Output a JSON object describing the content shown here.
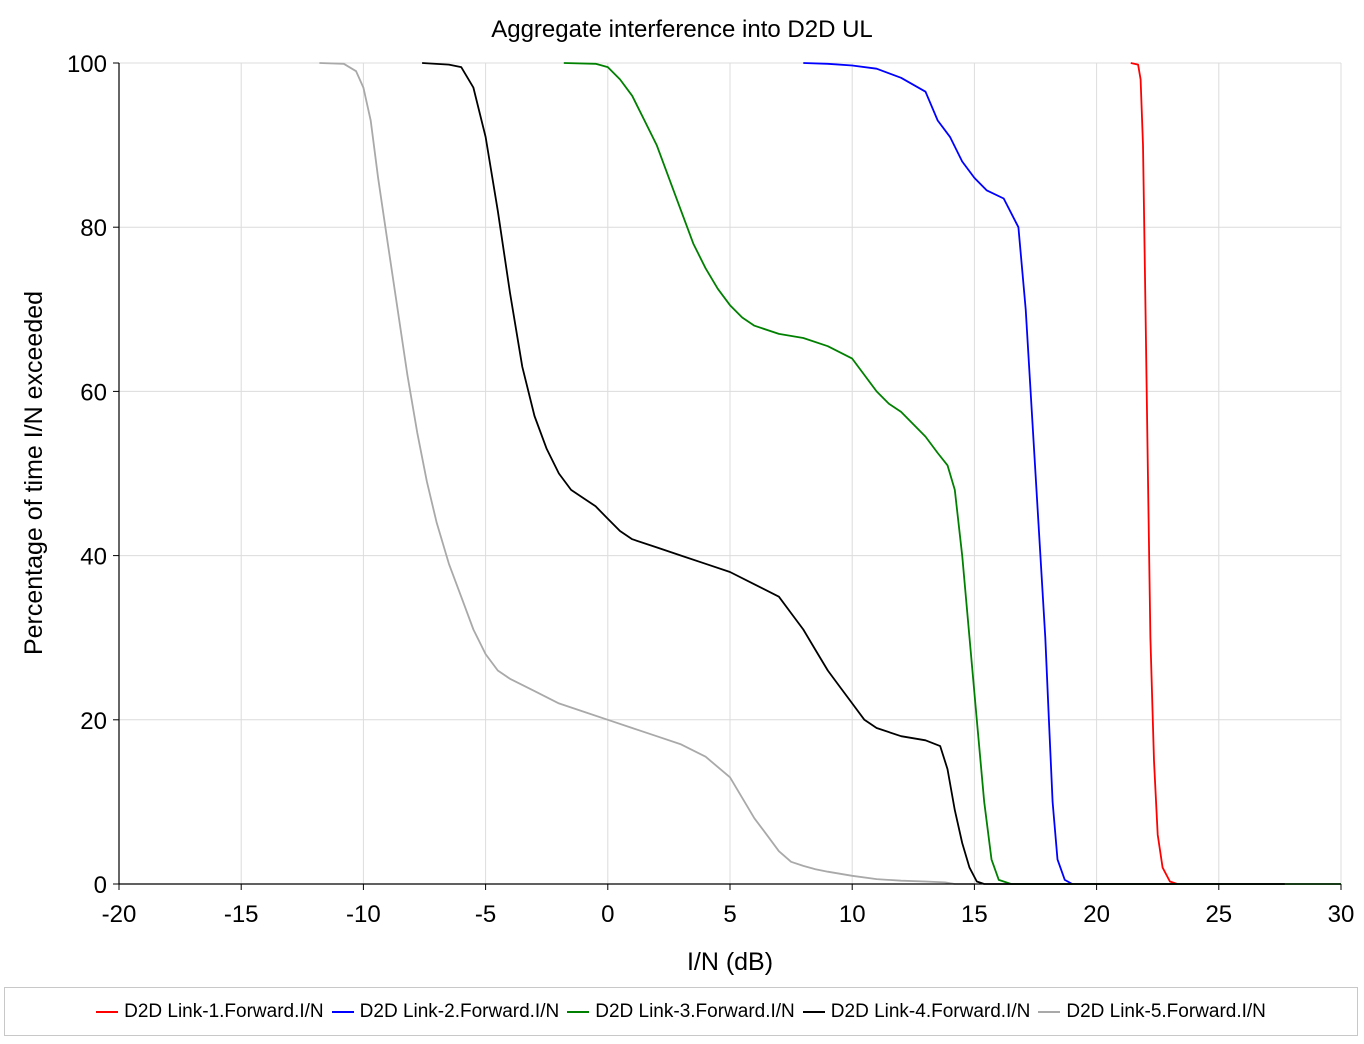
{
  "colors": {
    "link1": "#ff0000",
    "link2": "#0000ff",
    "link3": "#008000",
    "link4": "#000000",
    "link5": "#a9a9a9",
    "grid": "#dcdcdc",
    "axis": "#000000"
  },
  "chart_data": {
    "type": "line",
    "title": "Aggregate interference into D2D UL",
    "xlabel": "I/N (dB)",
    "ylabel": "Percentage of time I/N exceeded",
    "xlim": [
      -20,
      30
    ],
    "ylim": [
      0,
      100
    ],
    "xticks": [
      -20,
      -15,
      -10,
      -5,
      0,
      5,
      10,
      15,
      20,
      25,
      30
    ],
    "yticks": [
      0,
      20,
      40,
      60,
      80,
      100
    ],
    "xtick_labels": [
      "-20",
      "-15",
      "-10",
      "-5",
      "0",
      "5",
      "10",
      "15",
      "20",
      "25",
      "30"
    ],
    "ytick_labels": [
      "0",
      "20",
      "40",
      "60",
      "80",
      "100"
    ],
    "grid": true,
    "legend_position": "bottom",
    "series": [
      {
        "name": "D2D Link-1.Forward.I/N",
        "color_key": "link1",
        "points": [
          [
            21.4,
            100
          ],
          [
            21.7,
            99.8
          ],
          [
            21.8,
            98
          ],
          [
            21.9,
            90
          ],
          [
            22.0,
            70
          ],
          [
            22.1,
            50
          ],
          [
            22.2,
            30
          ],
          [
            22.35,
            15
          ],
          [
            22.5,
            6
          ],
          [
            22.7,
            2
          ],
          [
            23.0,
            0.3
          ],
          [
            23.3,
            0
          ]
        ]
      },
      {
        "name": "D2D Link-2.Forward.I/N",
        "color_key": "link2",
        "points": [
          [
            8,
            100
          ],
          [
            9,
            99.9
          ],
          [
            10,
            99.7
          ],
          [
            11,
            99.3
          ],
          [
            12,
            98.2
          ],
          [
            13,
            96.5
          ],
          [
            13.5,
            93
          ],
          [
            14,
            91
          ],
          [
            14.5,
            88
          ],
          [
            15,
            86
          ],
          [
            15.5,
            84.5
          ],
          [
            16.2,
            83.5
          ],
          [
            16.8,
            80
          ],
          [
            17.1,
            70
          ],
          [
            17.3,
            60
          ],
          [
            17.5,
            50
          ],
          [
            17.7,
            40
          ],
          [
            17.9,
            30
          ],
          [
            18.05,
            20
          ],
          [
            18.2,
            10
          ],
          [
            18.4,
            3
          ],
          [
            18.7,
            0.5
          ],
          [
            19,
            0
          ]
        ]
      },
      {
        "name": "D2D Link-3.Forward.I/N",
        "color_key": "link3",
        "points": [
          [
            -1.8,
            100
          ],
          [
            -0.5,
            99.9
          ],
          [
            0,
            99.5
          ],
          [
            0.5,
            98
          ],
          [
            1,
            96
          ],
          [
            1.5,
            93
          ],
          [
            2,
            90
          ],
          [
            2.5,
            86
          ],
          [
            3,
            82
          ],
          [
            3.5,
            78
          ],
          [
            4,
            75
          ],
          [
            4.5,
            72.5
          ],
          [
            5,
            70.5
          ],
          [
            5.5,
            69
          ],
          [
            6,
            68
          ],
          [
            7,
            67
          ],
          [
            8,
            66.5
          ],
          [
            9,
            65.5
          ],
          [
            10,
            64
          ],
          [
            10.5,
            62
          ],
          [
            11,
            60
          ],
          [
            11.5,
            58.5
          ],
          [
            12,
            57.5
          ],
          [
            12.5,
            56
          ],
          [
            13,
            54.5
          ],
          [
            13.5,
            52.5
          ],
          [
            13.9,
            51
          ],
          [
            14.2,
            48
          ],
          [
            14.5,
            40
          ],
          [
            14.8,
            30
          ],
          [
            15.1,
            20
          ],
          [
            15.4,
            10
          ],
          [
            15.7,
            3
          ],
          [
            16,
            0.5
          ],
          [
            16.5,
            0
          ],
          [
            27.7,
            0
          ],
          [
            30,
            0
          ]
        ]
      },
      {
        "name": "D2D Link-4.Forward.I/N",
        "color_key": "link4",
        "points": [
          [
            -7.6,
            100
          ],
          [
            -6.5,
            99.8
          ],
          [
            -6,
            99.5
          ],
          [
            -5.5,
            97
          ],
          [
            -5,
            91
          ],
          [
            -4.5,
            82
          ],
          [
            -4,
            72
          ],
          [
            -3.5,
            63
          ],
          [
            -3,
            57
          ],
          [
            -2.5,
            53
          ],
          [
            -2,
            50
          ],
          [
            -1.5,
            48
          ],
          [
            -1,
            47
          ],
          [
            -0.5,
            46
          ],
          [
            0,
            44.5
          ],
          [
            0.5,
            43
          ],
          [
            1,
            42
          ],
          [
            2,
            41
          ],
          [
            3,
            40
          ],
          [
            4,
            39
          ],
          [
            5,
            38
          ],
          [
            6,
            36.5
          ],
          [
            7,
            35
          ],
          [
            7.5,
            33
          ],
          [
            8,
            31
          ],
          [
            8.5,
            28.5
          ],
          [
            9,
            26
          ],
          [
            9.5,
            24
          ],
          [
            10,
            22
          ],
          [
            10.5,
            20
          ],
          [
            11,
            19
          ],
          [
            12,
            18
          ],
          [
            13,
            17.5
          ],
          [
            13.6,
            16.8
          ],
          [
            13.9,
            14
          ],
          [
            14.2,
            9
          ],
          [
            14.5,
            5
          ],
          [
            14.8,
            2
          ],
          [
            15.1,
            0.3
          ],
          [
            15.4,
            0
          ],
          [
            27.7,
            0
          ]
        ]
      },
      {
        "name": "D2D Link-5.Forward.I/N",
        "color_key": "link5",
        "points": [
          [
            -11.8,
            100
          ],
          [
            -10.8,
            99.9
          ],
          [
            -10.3,
            99
          ],
          [
            -10,
            97
          ],
          [
            -9.7,
            93
          ],
          [
            -9.4,
            86
          ],
          [
            -9,
            78
          ],
          [
            -8.6,
            70
          ],
          [
            -8.2,
            62
          ],
          [
            -7.8,
            55
          ],
          [
            -7.4,
            49
          ],
          [
            -7,
            44
          ],
          [
            -6.5,
            39
          ],
          [
            -6,
            35
          ],
          [
            -5.5,
            31
          ],
          [
            -5,
            28
          ],
          [
            -4.5,
            26
          ],
          [
            -4,
            25
          ],
          [
            -3,
            23.5
          ],
          [
            -2,
            22
          ],
          [
            -1,
            21
          ],
          [
            0,
            20
          ],
          [
            1,
            19
          ],
          [
            2,
            18
          ],
          [
            3,
            17
          ],
          [
            4,
            15.5
          ],
          [
            5,
            13
          ],
          [
            5.5,
            10.5
          ],
          [
            6,
            8
          ],
          [
            6.5,
            6
          ],
          [
            7,
            4
          ],
          [
            7.5,
            2.7
          ],
          [
            8,
            2.2
          ],
          [
            8.5,
            1.8
          ],
          [
            9,
            1.5
          ],
          [
            10,
            1
          ],
          [
            11,
            0.6
          ],
          [
            12,
            0.4
          ],
          [
            13,
            0.3
          ],
          [
            13.8,
            0.2
          ],
          [
            14.2,
            0
          ],
          [
            15,
            0
          ]
        ]
      }
    ]
  }
}
